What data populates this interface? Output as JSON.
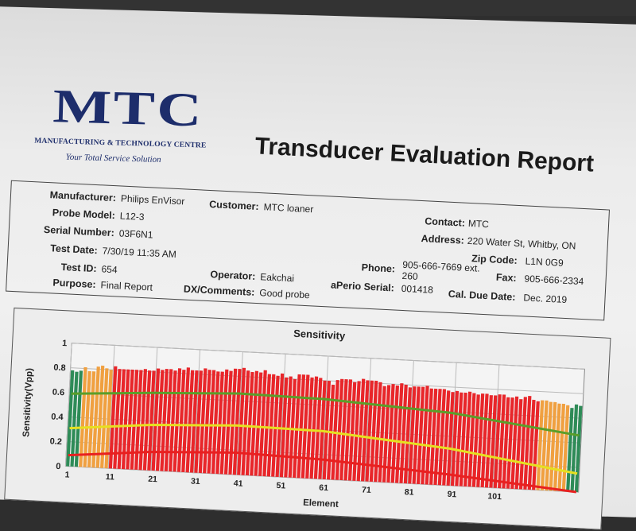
{
  "logo": {
    "mark": "MTC",
    "name": "MANUFACTURING & TECHNOLOGY CENTRE",
    "tagline": "Your Total Service Solution"
  },
  "title": "Transducer Evaluation Report",
  "fields": {
    "manufacturer": {
      "label": "Manufacturer:",
      "value": "Philips EnVisor"
    },
    "probe_model": {
      "label": "Probe Model:",
      "value": "L12-3"
    },
    "serial_number": {
      "label": "Serial Number:",
      "value": "03F6N1"
    },
    "test_date": {
      "label": "Test Date:",
      "value": "7/30/19 11:35 AM"
    },
    "test_id": {
      "label": "Test ID:",
      "value": "654"
    },
    "purpose": {
      "label": "Purpose:",
      "value": "Final Report"
    },
    "customer": {
      "label": "Customer:",
      "value": "MTC loaner"
    },
    "operator": {
      "label": "Operator:",
      "value": "Eakchai"
    },
    "dx_comments": {
      "label": "DX/Comments:",
      "value": "Good probe"
    },
    "contact": {
      "label": "Contact:",
      "value": "MTC"
    },
    "address": {
      "label": "Address:",
      "value": "220 Water St, Whitby, ON"
    },
    "zip_code": {
      "label": "Zip Code:",
      "value": "L1N 0G9"
    },
    "phone": {
      "label": "Phone:",
      "value": "905-666-7669 ext.",
      "value2": "260"
    },
    "fax": {
      "label": "Fax:",
      "value": "905-666-2334"
    },
    "aperio_serial": {
      "label": "aPerio Serial:",
      "value": "001418"
    },
    "cal_due_date": {
      "label": "Cal. Due Date:",
      "value": "Dec. 2019"
    }
  },
  "chart_data": {
    "type": "bar",
    "title": "Sensitivity",
    "ylabel": "Sensitivity(Vpp)",
    "xlabel": "Element",
    "ylim": [
      0,
      1
    ],
    "yticks": [
      "0",
      "0.2",
      "0.4",
      "0.6",
      "0.8",
      "1"
    ],
    "xticks": [
      "1",
      "11",
      "21",
      "31",
      "41",
      "51",
      "61",
      "71",
      "81",
      "91",
      "101"
    ],
    "grid": true,
    "values": [
      0.78,
      0.77,
      0.78,
      0.81,
      0.78,
      0.78,
      0.82,
      0.83,
      0.81,
      0.8,
      0.83,
      0.81,
      0.81,
      0.81,
      0.81,
      0.81,
      0.81,
      0.82,
      0.81,
      0.81,
      0.83,
      0.82,
      0.83,
      0.83,
      0.82,
      0.84,
      0.83,
      0.85,
      0.83,
      0.83,
      0.83,
      0.85,
      0.84,
      0.84,
      0.83,
      0.83,
      0.85,
      0.84,
      0.86,
      0.86,
      0.87,
      0.85,
      0.84,
      0.85,
      0.84,
      0.86,
      0.83,
      0.83,
      0.82,
      0.84,
      0.81,
      0.82,
      0.8,
      0.84,
      0.84,
      0.84,
      0.82,
      0.83,
      0.82,
      0.8,
      0.8,
      0.77,
      0.81,
      0.82,
      0.82,
      0.82,
      0.8,
      0.81,
      0.83,
      0.82,
      0.82,
      0.82,
      0.81,
      0.78,
      0.79,
      0.8,
      0.79,
      0.81,
      0.8,
      0.78,
      0.79,
      0.79,
      0.79,
      0.8,
      0.78,
      0.78,
      0.78,
      0.78,
      0.77,
      0.76,
      0.77,
      0.76,
      0.76,
      0.77,
      0.76,
      0.75,
      0.76,
      0.76,
      0.75,
      0.75,
      0.76,
      0.76,
      0.74,
      0.74,
      0.75,
      0.73,
      0.75,
      0.76,
      0.73,
      0.72,
      0.73,
      0.73,
      0.72,
      0.72,
      0.71,
      0.71,
      0.7,
      0.68,
      0.71,
      0.7
    ],
    "bar_zones": [
      {
        "from": 1,
        "to": 3,
        "color": "#2e8b57"
      },
      {
        "from": 4,
        "to": 10,
        "color": "#f0a040"
      },
      {
        "from": 11,
        "to": 110,
        "color": "#e8262a"
      },
      {
        "from": 111,
        "to": 117,
        "color": "#f0a040"
      },
      {
        "from": 118,
        "to": 120,
        "color": "#2e8b57"
      }
    ],
    "limit_lines": [
      {
        "color": "#5a9e2a",
        "x": [
          1,
          20,
          40,
          60,
          90,
          120
        ],
        "y": [
          0.59,
          0.63,
          0.66,
          0.65,
          0.59,
          0.46
        ]
      },
      {
        "color": "#e6e020",
        "x": [
          1,
          20,
          40,
          60,
          90,
          120
        ],
        "y": [
          0.31,
          0.37,
          0.4,
          0.39,
          0.3,
          0.15
        ]
      },
      {
        "color": "#e82020",
        "x": [
          1,
          20,
          40,
          60,
          90,
          120
        ],
        "y": [
          0.09,
          0.15,
          0.18,
          0.16,
          0.09,
          0.0
        ]
      }
    ]
  }
}
